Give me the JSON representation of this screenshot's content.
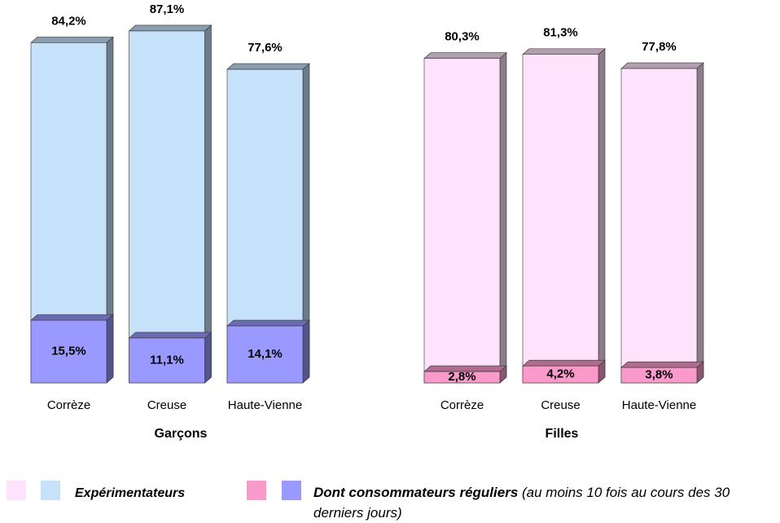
{
  "chart_data": [
    {
      "type": "bar",
      "x_label": "Garçons",
      "categories": [
        "Corrèze",
        "Creuse",
        "Haute-Vienne"
      ],
      "ylim": [
        0,
        100
      ],
      "series": [
        {
          "name": "Expérimentateurs",
          "color": "#c6e2fb",
          "values": [
            84.2,
            87.1,
            77.6
          ],
          "value_labels": [
            "84,2%",
            "87,1%",
            "77,6%"
          ]
        },
        {
          "name": "Dont consommateurs réguliers",
          "color": "#9999ff",
          "values": [
            15.5,
            11.1,
            14.1
          ],
          "value_labels": [
            "15,5%",
            "11,1%",
            "14,1%"
          ]
        }
      ]
    },
    {
      "type": "bar",
      "x_label": "Filles",
      "categories": [
        "Corrèze",
        "Creuse",
        "Haute-Vienne"
      ],
      "ylim": [
        0,
        100
      ],
      "series": [
        {
          "name": "Expérimentateurs",
          "color": "#ffe2fb",
          "values": [
            80.3,
            81.3,
            77.8
          ],
          "value_labels": [
            "80,3%",
            "81,3%",
            "77,8%"
          ]
        },
        {
          "name": "Dont consommateurs réguliers",
          "color": "#f99acb",
          "values": [
            2.8,
            4.2,
            3.8
          ],
          "value_labels": [
            "2,8%",
            "4,2%",
            "3,8%"
          ]
        }
      ]
    }
  ],
  "legend_note": "(au moins 10 fois au cours des 30 derniers jours)"
}
